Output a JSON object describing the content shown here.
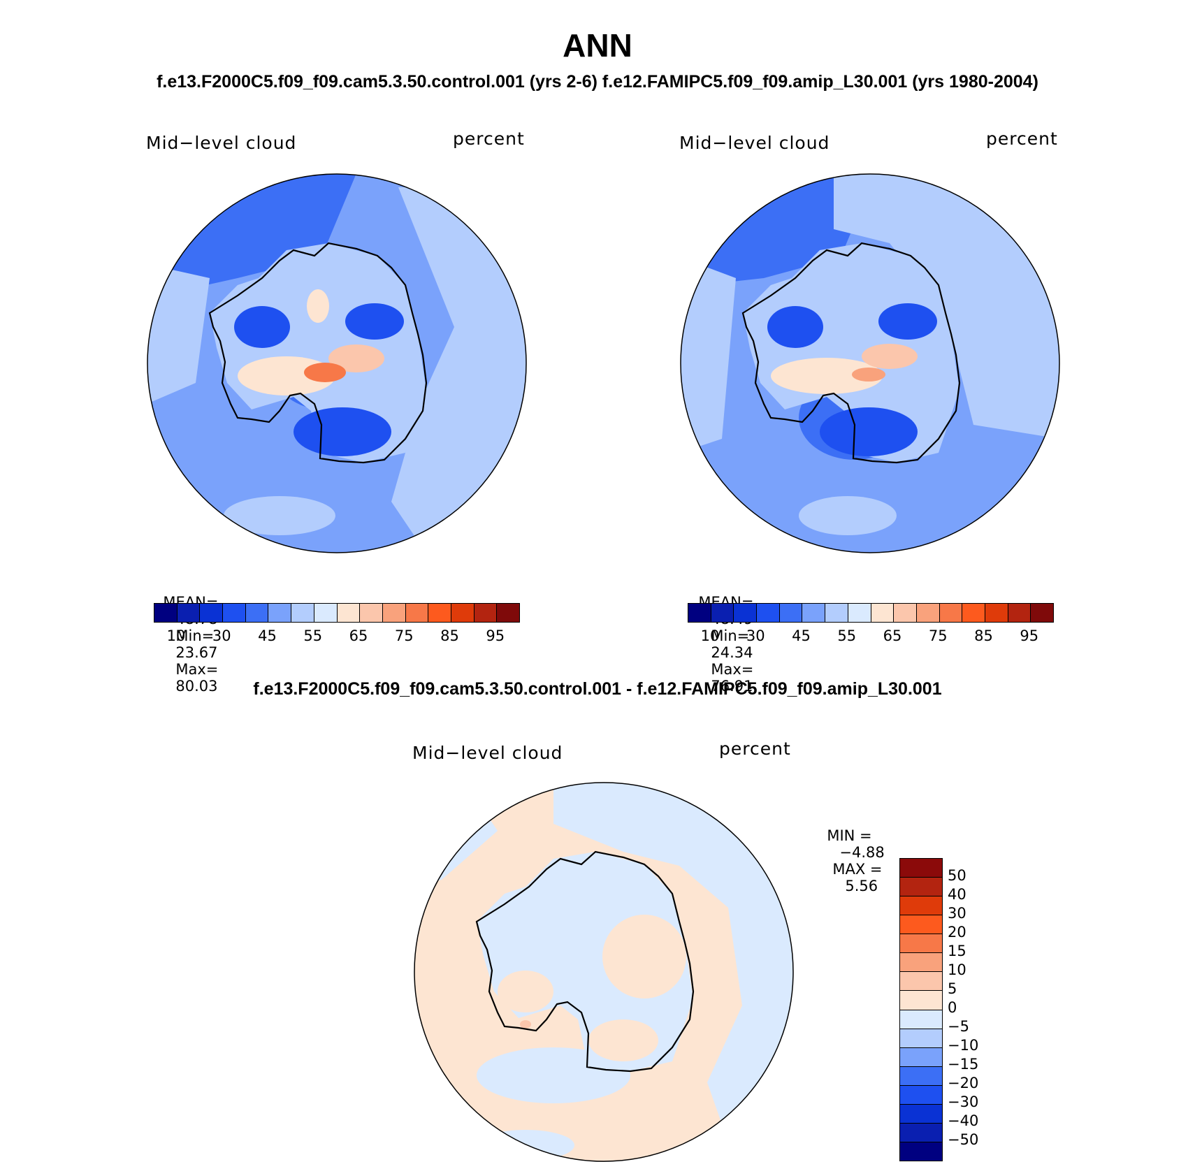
{
  "header": {
    "title": "ANN",
    "subtitle": "f.e13.F2000C5.f09_f09.cam5.3.50.control.001 (yrs 2-6)  f.e12.FAMIPC5.f09_f09.amip_L30.001 (yrs 1980-2004)",
    "diff_title": "f.e13.F2000C5.f09_f09.cam5.3.50.control.001 - f.e12.FAMIPC5.f09_f09.amip_L30.001"
  },
  "panels": [
    {
      "variable": "Mid−level cloud",
      "units": "percent",
      "mean_label": "MEAN=",
      "mean": "48.78",
      "min_label": "Min=",
      "min": "23.67",
      "max_label": "Max=",
      "max": "80.03"
    },
    {
      "variable": "Mid−level cloud",
      "units": "percent",
      "mean_label": "MEAN=",
      "mean": "48.49",
      "min_label": "Min=",
      "min": "24.34",
      "max_label": "Max=",
      "max": "76.91"
    }
  ],
  "diff_panel": {
    "variable": "Mid−level cloud",
    "units": "percent",
    "min_label": "MIN =",
    "min": "−4.88",
    "max_label": "MAX =",
    "max": "5.56"
  },
  "colorbar_abs": {
    "tick_labels": [
      "10",
      "30",
      "45",
      "55",
      "65",
      "75",
      "85",
      "95"
    ],
    "colors": [
      "#000080",
      "#0a1fb0",
      "#0a32d4",
      "#1e50f0",
      "#3c6ff5",
      "#7aa2fb",
      "#b3cdfd",
      "#daeafe",
      "#fde5d2",
      "#fbc6ac",
      "#f9a27c",
      "#f77848",
      "#fd5a1e",
      "#df3b0a",
      "#b32410",
      "#7f0a0a"
    ]
  },
  "colorbar_diff": {
    "tick_labels": [
      "50",
      "40",
      "30",
      "20",
      "15",
      "10",
      "5",
      "0",
      "−5",
      "−10",
      "−15",
      "−20",
      "−30",
      "−40",
      "−50"
    ],
    "colors": [
      "#8b0a0a",
      "#b32410",
      "#df3b0a",
      "#fd5a1e",
      "#f77848",
      "#f9a27c",
      "#fbc6ac",
      "#fde5d2",
      "#daeafe",
      "#b3cdfd",
      "#7aa2fb",
      "#3c6ff5",
      "#1e50f0",
      "#0a32d4",
      "#0a1fb0",
      "#000080"
    ]
  },
  "map_colors": {
    "ocean_fill": "#7aa2fb",
    "diff_fill": "#fde5d2",
    "coast": "#000000"
  }
}
